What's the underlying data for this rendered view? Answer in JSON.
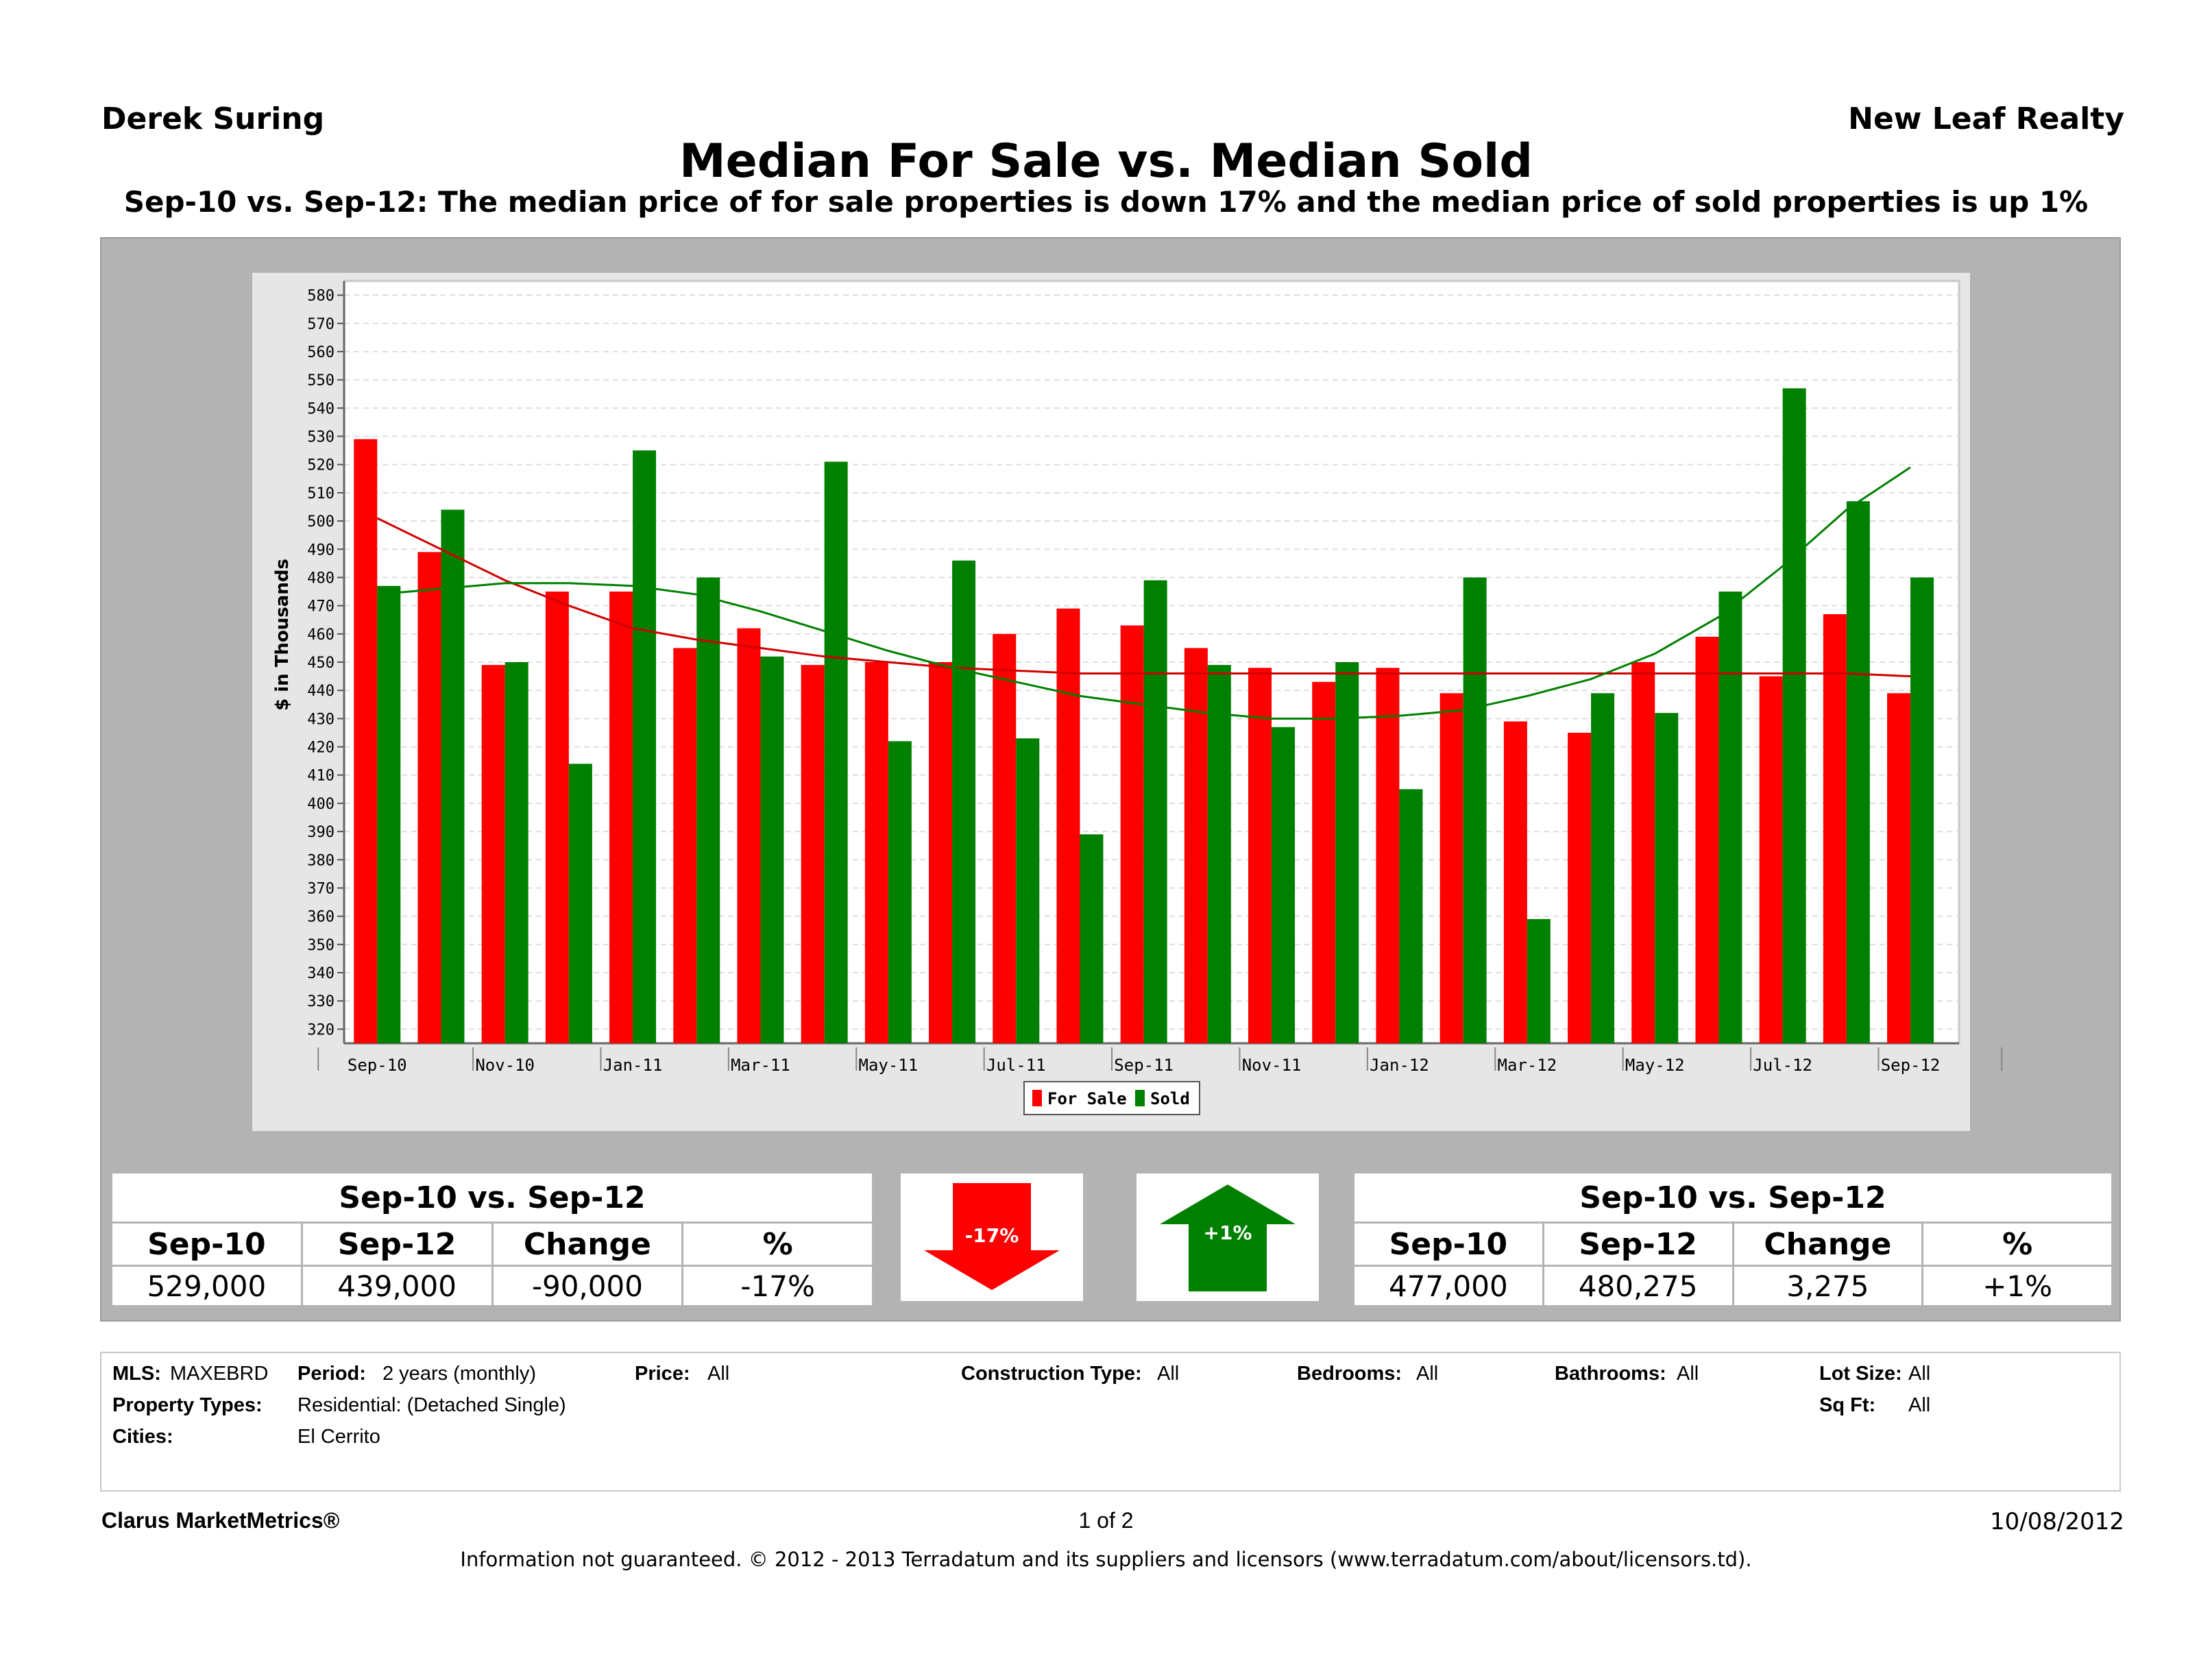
{
  "header": {
    "agent": "Derek Suring",
    "company": "New Leaf Realty",
    "title": "Median For Sale vs. Median Sold",
    "subtitle": "Sep-10 vs. Sep-12:  The median price of for sale properties is down 17% and the median price of sold properties is up 1%"
  },
  "chart_data": {
    "type": "bar",
    "ylabel": "$ in Thousands",
    "ylim": [
      315,
      585
    ],
    "yticks": [
      320,
      330,
      340,
      350,
      360,
      370,
      380,
      390,
      400,
      410,
      420,
      430,
      440,
      450,
      460,
      470,
      480,
      490,
      500,
      510,
      520,
      530,
      540,
      550,
      560,
      570,
      580
    ],
    "categories": [
      "Sep-10",
      "Oct-10",
      "Nov-10",
      "Dec-10",
      "Jan-11",
      "Feb-11",
      "Mar-11",
      "Apr-11",
      "May-11",
      "Jun-11",
      "Jul-11",
      "Aug-11",
      "Sep-11",
      "Oct-11",
      "Nov-11",
      "Dec-11",
      "Jan-12",
      "Feb-12",
      "Mar-12",
      "Apr-12",
      "May-12",
      "Jun-12",
      "Jul-12",
      "Aug-12",
      "Sep-12"
    ],
    "x_tick_labels": [
      "Sep-10",
      "Nov-10",
      "Jan-11",
      "Mar-11",
      "May-11",
      "Jul-11",
      "Sep-11",
      "Nov-11",
      "Jan-12",
      "Mar-12",
      "May-12",
      "Jul-12",
      "Sep-12"
    ],
    "series": [
      {
        "name": "For Sale",
        "color": "#ff0000",
        "values": [
          529,
          489,
          449,
          475,
          475,
          455,
          462,
          449,
          450,
          450,
          460,
          469,
          463,
          455,
          448,
          443,
          448,
          439,
          429,
          425,
          450,
          459,
          445,
          467,
          439
        ],
        "trend": [
          501,
          490,
          479,
          470,
          462,
          458,
          455,
          452,
          450,
          448,
          447,
          446,
          446,
          446,
          446,
          446,
          446,
          446,
          446,
          446,
          446,
          446,
          446,
          446,
          445
        ]
      },
      {
        "name": "Sold",
        "color": "#008000",
        "values": [
          477,
          504,
          450,
          414,
          525,
          480,
          452,
          521,
          422,
          486,
          423,
          389,
          479,
          449,
          427,
          450,
          405,
          480,
          359,
          439,
          432,
          475,
          547,
          507,
          480
        ],
        "trend": [
          474,
          476,
          478,
          478,
          477,
          474,
          468,
          461,
          454,
          448,
          443,
          438,
          435,
          432,
          430,
          430,
          431,
          433,
          438,
          444,
          453,
          466,
          484,
          504,
          519
        ]
      }
    ],
    "legend": {
      "placement": "bottom-center",
      "labels": [
        "For Sale",
        "Sold"
      ]
    },
    "grid": true
  },
  "stats": {
    "for_sale": {
      "header": "Sep-10 vs. Sep-12",
      "columns": [
        "Sep-10",
        "Sep-12",
        "Change",
        "%"
      ],
      "values": [
        "529,000",
        "439,000",
        "-90,000",
        "-17%"
      ],
      "arrow_label": "-17%",
      "arrow_color": "#ff0000"
    },
    "sold": {
      "header": "Sep-10 vs. Sep-12",
      "columns": [
        "Sep-10",
        "Sep-12",
        "Change",
        "%"
      ],
      "values": [
        "477,000",
        "480,275",
        "3,275",
        "+1%"
      ],
      "arrow_label": "+1%",
      "arrow_color": "#008000"
    }
  },
  "info": {
    "mls_label": "MLS:",
    "mls_value": "MAXEBRD",
    "period_label": "Period:",
    "period_value": "2 years (monthly)",
    "price_label": "Price:",
    "price_value": "All",
    "construction_label": "Construction Type:",
    "construction_value": "All",
    "bedrooms_label": "Bedrooms:",
    "bedrooms_value": "All",
    "bathrooms_label": "Bathrooms:",
    "bathrooms_value": "All",
    "lotsize_label": "Lot Size:",
    "lotsize_value": "All",
    "property_types_label": "Property Types:",
    "property_types_value": "Residential: (Detached Single)",
    "sqft_label": "Sq Ft:",
    "sqft_value": "All",
    "cities_label": "Cities:",
    "cities_value": "El Cerrito"
  },
  "footer": {
    "brand": "Clarus MarketMetrics®",
    "page": "1 of 2",
    "date": "10/08/2012",
    "disclaimer": "Information not guaranteed.  © 2012 - 2013 Terradatum and its suppliers and licensors (www.terradatum.com/about/licensors.td)."
  }
}
